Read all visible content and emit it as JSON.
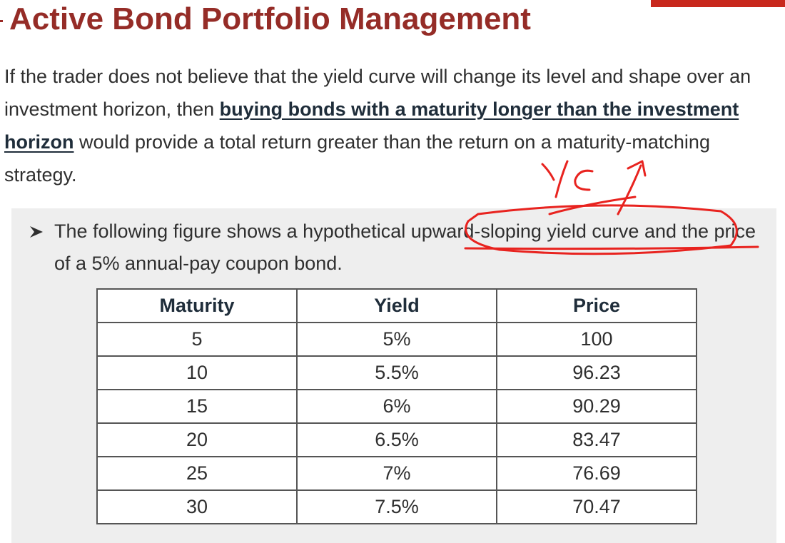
{
  "slide": {
    "title": "Active Bond Portfolio Management",
    "paragraph": {
      "part1": "If the trader does not believe that the yield curve will change its level and shape over an investment horizon, then ",
      "emphasis": "buying bonds with a maturity longer than the investment horizon",
      "part2": " would provide a total return greater than the return on a maturity-matching strategy."
    },
    "bullet": "The following figure shows a hypothetical upward-sloping yield curve and the price of a 5% annual-pay coupon bond.",
    "table": {
      "headers": [
        "Maturity",
        "Yield",
        "Price"
      ],
      "rows": [
        [
          "5",
          "5%",
          "100"
        ],
        [
          "10",
          "5.5%",
          "96.23"
        ],
        [
          "15",
          "6%",
          "90.29"
        ],
        [
          "20",
          "6.5%",
          "83.47"
        ],
        [
          "25",
          "7%",
          "76.69"
        ],
        [
          "30",
          "7.5%",
          "70.47"
        ]
      ]
    },
    "colors": {
      "title": "#952c27",
      "accent_bar": "#c8281d",
      "annotation_ink": "#e8231f",
      "panel_bg": "#eeeeee"
    }
  }
}
